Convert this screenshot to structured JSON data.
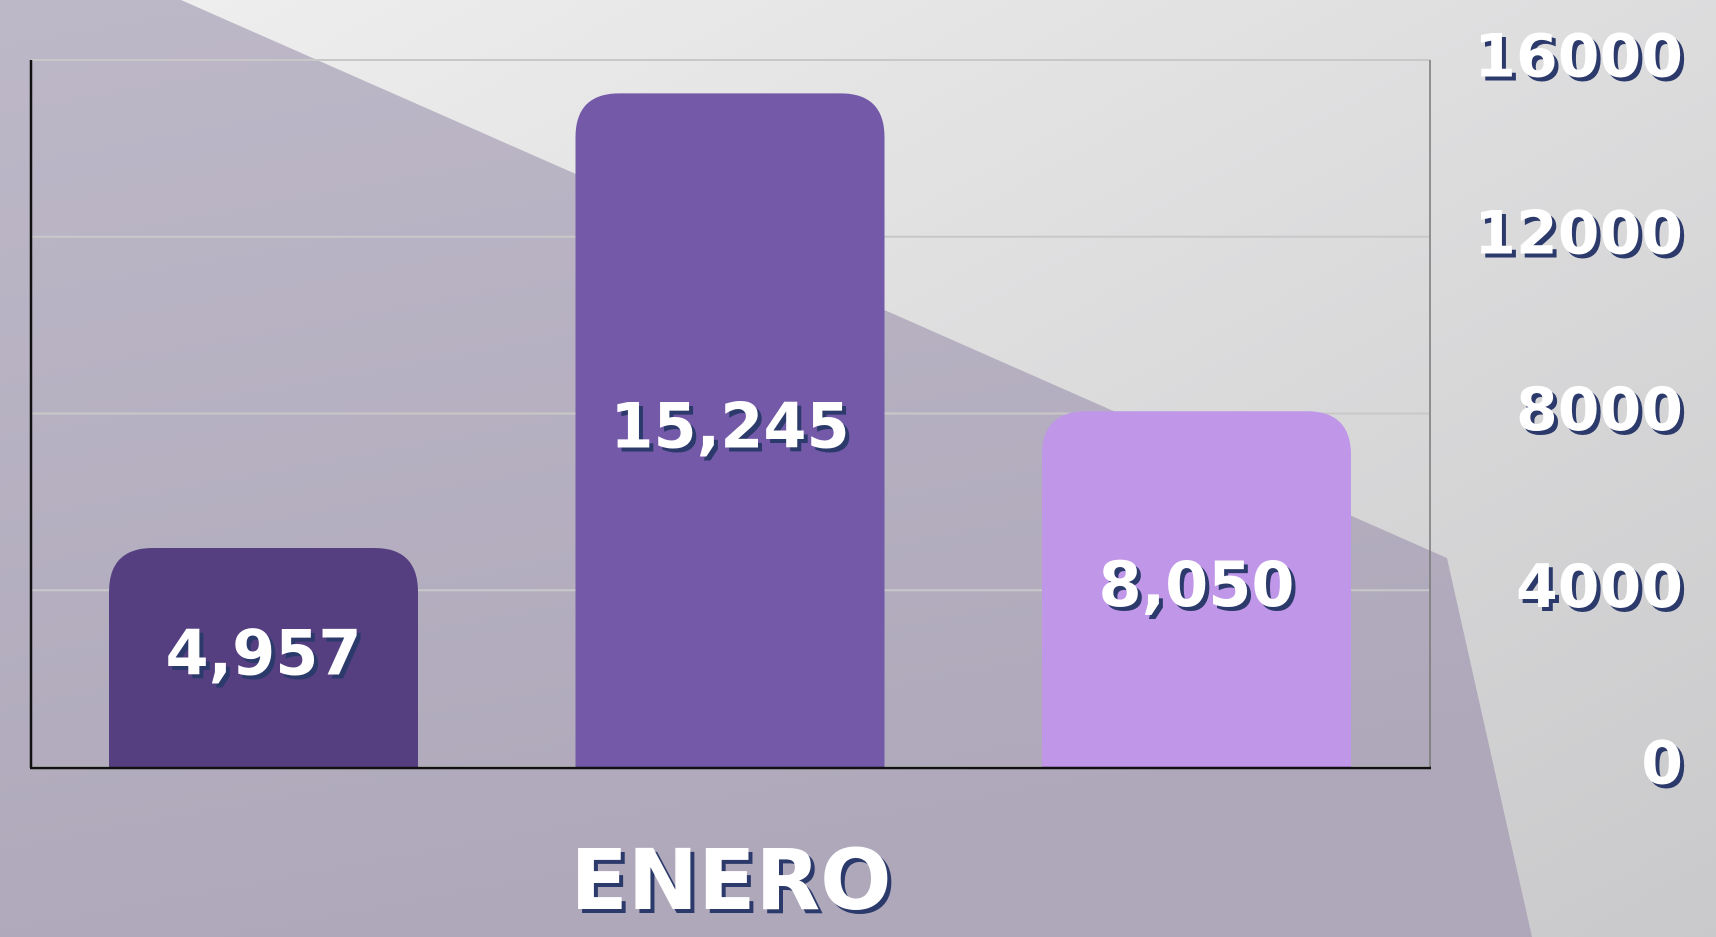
{
  "chart_data": {
    "type": "bar",
    "xlabel": "ENERO",
    "values": [
      4957,
      15245,
      8050
    ],
    "value_labels": [
      "4,957",
      "15,245",
      "8,050"
    ],
    "colors": [
      "#553f80",
      "#7359a8",
      "#bf96e8"
    ],
    "ylim": [
      0,
      16000
    ],
    "yticks": [
      0,
      4000,
      8000,
      12000,
      16000
    ],
    "grid": true,
    "y_axis_side": "right"
  }
}
